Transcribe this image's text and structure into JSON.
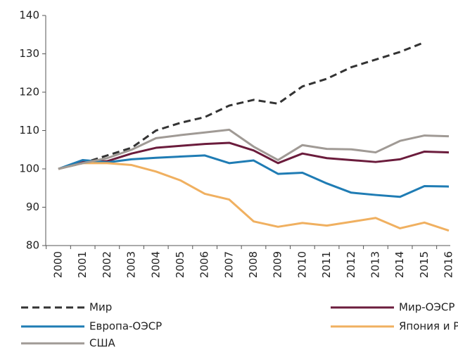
{
  "chart_data": {
    "type": "line",
    "categories": [
      "2000",
      "2001",
      "2002",
      "2003",
      "2004",
      "2005",
      "2006",
      "2007",
      "2008",
      "2009",
      "2010",
      "2011",
      "2012",
      "2013",
      "2014",
      "2015",
      "2016"
    ],
    "ylim": [
      80,
      140
    ],
    "yticks": [
      80,
      90,
      100,
      110,
      120,
      130,
      140
    ],
    "series": [
      {
        "name": "Мир",
        "color": "#333333",
        "style": "dashed",
        "values": [
          100,
          101.5,
          103.5,
          105.5,
          110,
          112,
          113.5,
          116.5,
          118,
          117,
          121.5,
          123.5,
          126.5,
          128.5,
          130.5,
          133,
          null
        ]
      },
      {
        "name": "Мир-ОЭСР",
        "color": "#6b1c3c",
        "style": "solid",
        "values": [
          100,
          102,
          102,
          104,
          105.5,
          106,
          106.5,
          106.8,
          104.8,
          101.5,
          104,
          102.8,
          102.3,
          101.8,
          102.5,
          104.5,
          104.3
        ]
      },
      {
        "name": "Европа-ОЭСР",
        "color": "#1f7cb4",
        "style": "solid",
        "values": [
          100,
          102.3,
          101.7,
          102.5,
          102.9,
          103.2,
          103.5,
          101.5,
          102.2,
          98.7,
          99,
          96.2,
          93.8,
          93.2,
          92.7,
          95.5,
          95.4
        ]
      },
      {
        "name": "Япония и Р.Корея",
        "color": "#f0b060",
        "style": "solid",
        "values": [
          100,
          101.5,
          101.5,
          101,
          99.3,
          97,
          93.5,
          92,
          86.3,
          84.9,
          85.9,
          85.2,
          86.2,
          87.2,
          84.5,
          86,
          83.9
        ]
      },
      {
        "name": "США",
        "color": "#a09a95",
        "style": "solid",
        "values": [
          100,
          101.5,
          102.8,
          105,
          108,
          108.8,
          109.5,
          110.2,
          105.8,
          102.3,
          106.2,
          105.2,
          105.1,
          104.3,
          107.3,
          108.7,
          108.5
        ]
      }
    ]
  }
}
